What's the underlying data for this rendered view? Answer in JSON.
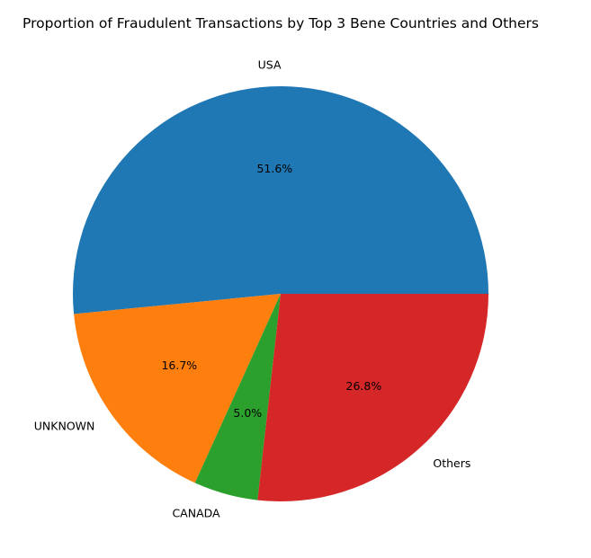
{
  "chart_data": {
    "type": "pie",
    "title": "Proportion of Fraudulent Transactions by Top 3 Bene Countries and Others",
    "slices": [
      {
        "label": "USA",
        "value": 51.6,
        "pct_label": "51.6%",
        "color": "#1f77b4"
      },
      {
        "label": "UNKNOWN",
        "value": 16.7,
        "pct_label": "16.7%",
        "color": "#ff7f0e"
      },
      {
        "label": "CANADA",
        "value": 5.0,
        "pct_label": "5.0%",
        "color": "#2ca02c"
      },
      {
        "label": "Others",
        "value": 26.8,
        "pct_label": "26.8%",
        "color": "#d62728"
      }
    ],
    "start_angle_deg": 0,
    "direction": "counterclockwise",
    "legend": "none"
  }
}
